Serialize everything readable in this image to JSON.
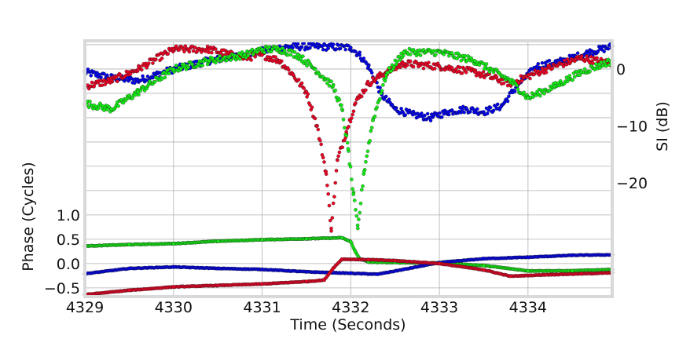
{
  "chart_data": {
    "type": "scatter",
    "xlabel": "Time (Seconds)",
    "ylabel_left": "Phase (Cycles)",
    "ylabel_right": "SI (dB)",
    "xlim": [
      4329,
      4334.95
    ],
    "x_ticks": [
      4329,
      4330,
      4331,
      4332,
      4333,
      4334
    ],
    "x_tick_labels": [
      "4329",
      "4330",
      "4331",
      "4332",
      "4333",
      "4334"
    ],
    "phase_axis": {
      "ylim": [
        -0.68,
        4.58
      ],
      "ticks": [
        -0.5,
        0.0,
        0.5,
        1.0
      ],
      "tick_labels": [
        "−0.5",
        "0.0",
        "0.5",
        "1.0"
      ],
      "extra_grid": [
        1.5,
        2.0,
        2.5,
        3.0,
        3.5,
        4.0,
        4.5
      ]
    },
    "si_axis": {
      "ylim": [
        -40,
        5
      ],
      "ticks": [
        0,
        -10,
        -20
      ],
      "tick_labels": [
        "0",
        "−10",
        "−20"
      ]
    },
    "grid": true,
    "colors": {
      "blue": "#0000ee",
      "red": "#ee0022",
      "green": "#11ee11"
    },
    "series": [
      {
        "panel": "si",
        "color": "#0000ee",
        "x": [
          4329.0,
          4329.3,
          4329.6,
          4330.0,
          4330.4,
          4330.8,
          4331.1,
          4331.3,
          4331.6,
          4332.0,
          4332.1,
          4332.2,
          4332.35,
          4332.5,
          4332.7,
          4332.9,
          4333.1,
          4333.3,
          4333.5,
          4333.7,
          4333.9,
          4334.1,
          4334.4,
          4334.7,
          4334.95
        ],
        "y": [
          -0.5,
          -1.5,
          -2.0,
          0.0,
          1.5,
          2.5,
          3.5,
          4.0,
          4.0,
          3.8,
          2.5,
          0.5,
          -4.5,
          -7.0,
          -8.0,
          -8.5,
          -7.5,
          -7.0,
          -7.5,
          -6.5,
          -2.5,
          0.5,
          1.5,
          3.0,
          4.0
        ]
      },
      {
        "panel": "si",
        "color": "#ee0022",
        "x": [
          4329.0,
          4329.3,
          4329.6,
          4330.0,
          4330.4,
          4330.8,
          4331.0,
          4331.2,
          4331.35,
          4331.5,
          4331.62,
          4331.72,
          4331.78,
          4331.85,
          4331.95,
          4332.05,
          4332.2,
          4332.4,
          4332.6,
          4333.0,
          4333.4,
          4333.8,
          4334.2,
          4334.6,
          4334.95
        ],
        "y": [
          -3.0,
          -2.0,
          0.0,
          3.5,
          3.5,
          2.0,
          2.5,
          1.5,
          -1.0,
          -4.0,
          -10.0,
          -18.0,
          -28.0,
          -16.0,
          -11.0,
          -6.0,
          -2.5,
          -0.5,
          1.0,
          0.5,
          -0.5,
          -2.5,
          0.0,
          2.0,
          1.0
        ]
      },
      {
        "panel": "si",
        "color": "#11ee11",
        "x": [
          4329.0,
          4329.3,
          4329.6,
          4330.0,
          4330.4,
          4330.8,
          4331.0,
          4331.2,
          4331.4,
          4331.6,
          4331.8,
          4331.9,
          4331.97,
          4332.03,
          4332.08,
          4332.15,
          4332.25,
          4332.4,
          4332.6,
          4333.0,
          4333.4,
          4333.8,
          4334.0,
          4334.3,
          4334.6,
          4334.95
        ],
        "y": [
          -6.0,
          -7.0,
          -4.0,
          0.0,
          1.5,
          2.5,
          3.5,
          3.5,
          2.5,
          0.0,
          -3.0,
          -7.0,
          -14.0,
          -22.0,
          -28.0,
          -18.0,
          -9.0,
          -1.0,
          3.0,
          3.0,
          1.5,
          -2.0,
          -5.0,
          -3.0,
          -0.5,
          1.5
        ]
      },
      {
        "panel": "phase",
        "color": "#11ee11",
        "x": [
          4329.0,
          4329.5,
          4330.0,
          4330.5,
          4331.0,
          4331.5,
          4331.9,
          4332.0,
          4332.05,
          4332.1,
          4332.2,
          4332.5,
          4333.0,
          4333.5,
          4334.0,
          4334.5,
          4334.95
        ],
        "y": [
          0.36,
          0.39,
          0.41,
          0.46,
          0.49,
          0.51,
          0.53,
          0.45,
          0.25,
          0.1,
          0.03,
          0.02,
          0.01,
          -0.04,
          -0.15,
          -0.15,
          -0.12
        ]
      },
      {
        "panel": "phase",
        "color": "#0000ee",
        "x": [
          4329.0,
          4329.5,
          4330.0,
          4330.5,
          4331.0,
          4331.5,
          4332.0,
          4332.3,
          4332.6,
          4333.0,
          4333.5,
          4334.0,
          4334.5,
          4334.95
        ],
        "y": [
          -0.21,
          -0.1,
          -0.07,
          -0.1,
          -0.12,
          -0.17,
          -0.2,
          -0.22,
          -0.12,
          0.02,
          0.1,
          0.13,
          0.17,
          0.18
        ]
      },
      {
        "panel": "phase",
        "color": "#ee0022",
        "x": [
          4329.0,
          4329.5,
          4330.0,
          4330.5,
          4331.0,
          4331.5,
          4331.7,
          4331.8,
          4331.9,
          4332.2,
          4332.5,
          4333.0,
          4333.5,
          4333.8,
          4334.2,
          4334.6,
          4334.95
        ],
        "y": [
          -0.64,
          -0.55,
          -0.48,
          -0.45,
          -0.42,
          -0.37,
          -0.34,
          -0.1,
          0.09,
          0.08,
          0.06,
          0.0,
          -0.13,
          -0.26,
          -0.23,
          -0.21,
          -0.19
        ]
      }
    ]
  }
}
